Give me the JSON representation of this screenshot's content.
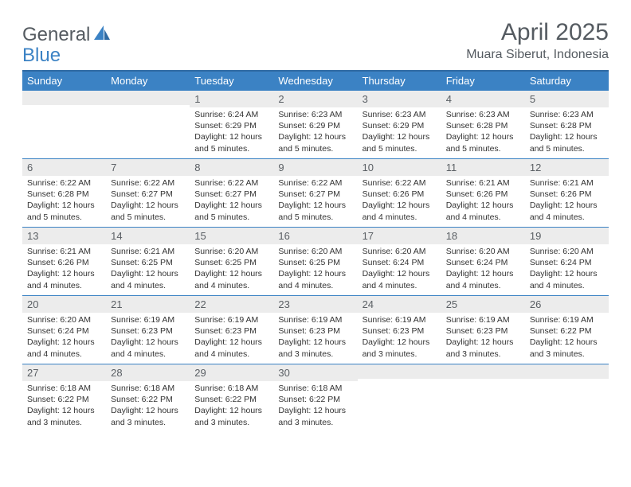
{
  "brand": {
    "word1": "General",
    "word2": "Blue"
  },
  "title": "April 2025",
  "subtitle": "Muara Siberut, Indonesia",
  "colors": {
    "headerBg": "#3b82c4",
    "headerBorder": "#2f6aa3",
    "dayBg": "#ececec",
    "text": "#333333",
    "muted": "#555b61"
  },
  "dayHeaders": [
    "Sunday",
    "Monday",
    "Tuesday",
    "Wednesday",
    "Thursday",
    "Friday",
    "Saturday"
  ],
  "weeks": [
    [
      {
        "num": "",
        "sunrise": "",
        "sunset": "",
        "daylight": ""
      },
      {
        "num": "",
        "sunrise": "",
        "sunset": "",
        "daylight": ""
      },
      {
        "num": "1",
        "sunrise": "Sunrise: 6:24 AM",
        "sunset": "Sunset: 6:29 PM",
        "daylight": "Daylight: 12 hours and 5 minutes."
      },
      {
        "num": "2",
        "sunrise": "Sunrise: 6:23 AM",
        "sunset": "Sunset: 6:29 PM",
        "daylight": "Daylight: 12 hours and 5 minutes."
      },
      {
        "num": "3",
        "sunrise": "Sunrise: 6:23 AM",
        "sunset": "Sunset: 6:29 PM",
        "daylight": "Daylight: 12 hours and 5 minutes."
      },
      {
        "num": "4",
        "sunrise": "Sunrise: 6:23 AM",
        "sunset": "Sunset: 6:28 PM",
        "daylight": "Daylight: 12 hours and 5 minutes."
      },
      {
        "num": "5",
        "sunrise": "Sunrise: 6:23 AM",
        "sunset": "Sunset: 6:28 PM",
        "daylight": "Daylight: 12 hours and 5 minutes."
      }
    ],
    [
      {
        "num": "6",
        "sunrise": "Sunrise: 6:22 AM",
        "sunset": "Sunset: 6:28 PM",
        "daylight": "Daylight: 12 hours and 5 minutes."
      },
      {
        "num": "7",
        "sunrise": "Sunrise: 6:22 AM",
        "sunset": "Sunset: 6:27 PM",
        "daylight": "Daylight: 12 hours and 5 minutes."
      },
      {
        "num": "8",
        "sunrise": "Sunrise: 6:22 AM",
        "sunset": "Sunset: 6:27 PM",
        "daylight": "Daylight: 12 hours and 5 minutes."
      },
      {
        "num": "9",
        "sunrise": "Sunrise: 6:22 AM",
        "sunset": "Sunset: 6:27 PM",
        "daylight": "Daylight: 12 hours and 5 minutes."
      },
      {
        "num": "10",
        "sunrise": "Sunrise: 6:22 AM",
        "sunset": "Sunset: 6:26 PM",
        "daylight": "Daylight: 12 hours and 4 minutes."
      },
      {
        "num": "11",
        "sunrise": "Sunrise: 6:21 AM",
        "sunset": "Sunset: 6:26 PM",
        "daylight": "Daylight: 12 hours and 4 minutes."
      },
      {
        "num": "12",
        "sunrise": "Sunrise: 6:21 AM",
        "sunset": "Sunset: 6:26 PM",
        "daylight": "Daylight: 12 hours and 4 minutes."
      }
    ],
    [
      {
        "num": "13",
        "sunrise": "Sunrise: 6:21 AM",
        "sunset": "Sunset: 6:26 PM",
        "daylight": "Daylight: 12 hours and 4 minutes."
      },
      {
        "num": "14",
        "sunrise": "Sunrise: 6:21 AM",
        "sunset": "Sunset: 6:25 PM",
        "daylight": "Daylight: 12 hours and 4 minutes."
      },
      {
        "num": "15",
        "sunrise": "Sunrise: 6:20 AM",
        "sunset": "Sunset: 6:25 PM",
        "daylight": "Daylight: 12 hours and 4 minutes."
      },
      {
        "num": "16",
        "sunrise": "Sunrise: 6:20 AM",
        "sunset": "Sunset: 6:25 PM",
        "daylight": "Daylight: 12 hours and 4 minutes."
      },
      {
        "num": "17",
        "sunrise": "Sunrise: 6:20 AM",
        "sunset": "Sunset: 6:24 PM",
        "daylight": "Daylight: 12 hours and 4 minutes."
      },
      {
        "num": "18",
        "sunrise": "Sunrise: 6:20 AM",
        "sunset": "Sunset: 6:24 PM",
        "daylight": "Daylight: 12 hours and 4 minutes."
      },
      {
        "num": "19",
        "sunrise": "Sunrise: 6:20 AM",
        "sunset": "Sunset: 6:24 PM",
        "daylight": "Daylight: 12 hours and 4 minutes."
      }
    ],
    [
      {
        "num": "20",
        "sunrise": "Sunrise: 6:20 AM",
        "sunset": "Sunset: 6:24 PM",
        "daylight": "Daylight: 12 hours and 4 minutes."
      },
      {
        "num": "21",
        "sunrise": "Sunrise: 6:19 AM",
        "sunset": "Sunset: 6:23 PM",
        "daylight": "Daylight: 12 hours and 4 minutes."
      },
      {
        "num": "22",
        "sunrise": "Sunrise: 6:19 AM",
        "sunset": "Sunset: 6:23 PM",
        "daylight": "Daylight: 12 hours and 4 minutes."
      },
      {
        "num": "23",
        "sunrise": "Sunrise: 6:19 AM",
        "sunset": "Sunset: 6:23 PM",
        "daylight": "Daylight: 12 hours and 3 minutes."
      },
      {
        "num": "24",
        "sunrise": "Sunrise: 6:19 AM",
        "sunset": "Sunset: 6:23 PM",
        "daylight": "Daylight: 12 hours and 3 minutes."
      },
      {
        "num": "25",
        "sunrise": "Sunrise: 6:19 AM",
        "sunset": "Sunset: 6:23 PM",
        "daylight": "Daylight: 12 hours and 3 minutes."
      },
      {
        "num": "26",
        "sunrise": "Sunrise: 6:19 AM",
        "sunset": "Sunset: 6:22 PM",
        "daylight": "Daylight: 12 hours and 3 minutes."
      }
    ],
    [
      {
        "num": "27",
        "sunrise": "Sunrise: 6:18 AM",
        "sunset": "Sunset: 6:22 PM",
        "daylight": "Daylight: 12 hours and 3 minutes."
      },
      {
        "num": "28",
        "sunrise": "Sunrise: 6:18 AM",
        "sunset": "Sunset: 6:22 PM",
        "daylight": "Daylight: 12 hours and 3 minutes."
      },
      {
        "num": "29",
        "sunrise": "Sunrise: 6:18 AM",
        "sunset": "Sunset: 6:22 PM",
        "daylight": "Daylight: 12 hours and 3 minutes."
      },
      {
        "num": "30",
        "sunrise": "Sunrise: 6:18 AM",
        "sunset": "Sunset: 6:22 PM",
        "daylight": "Daylight: 12 hours and 3 minutes."
      },
      {
        "num": "",
        "sunrise": "",
        "sunset": "",
        "daylight": ""
      },
      {
        "num": "",
        "sunrise": "",
        "sunset": "",
        "daylight": ""
      },
      {
        "num": "",
        "sunrise": "",
        "sunset": "",
        "daylight": ""
      }
    ]
  ]
}
